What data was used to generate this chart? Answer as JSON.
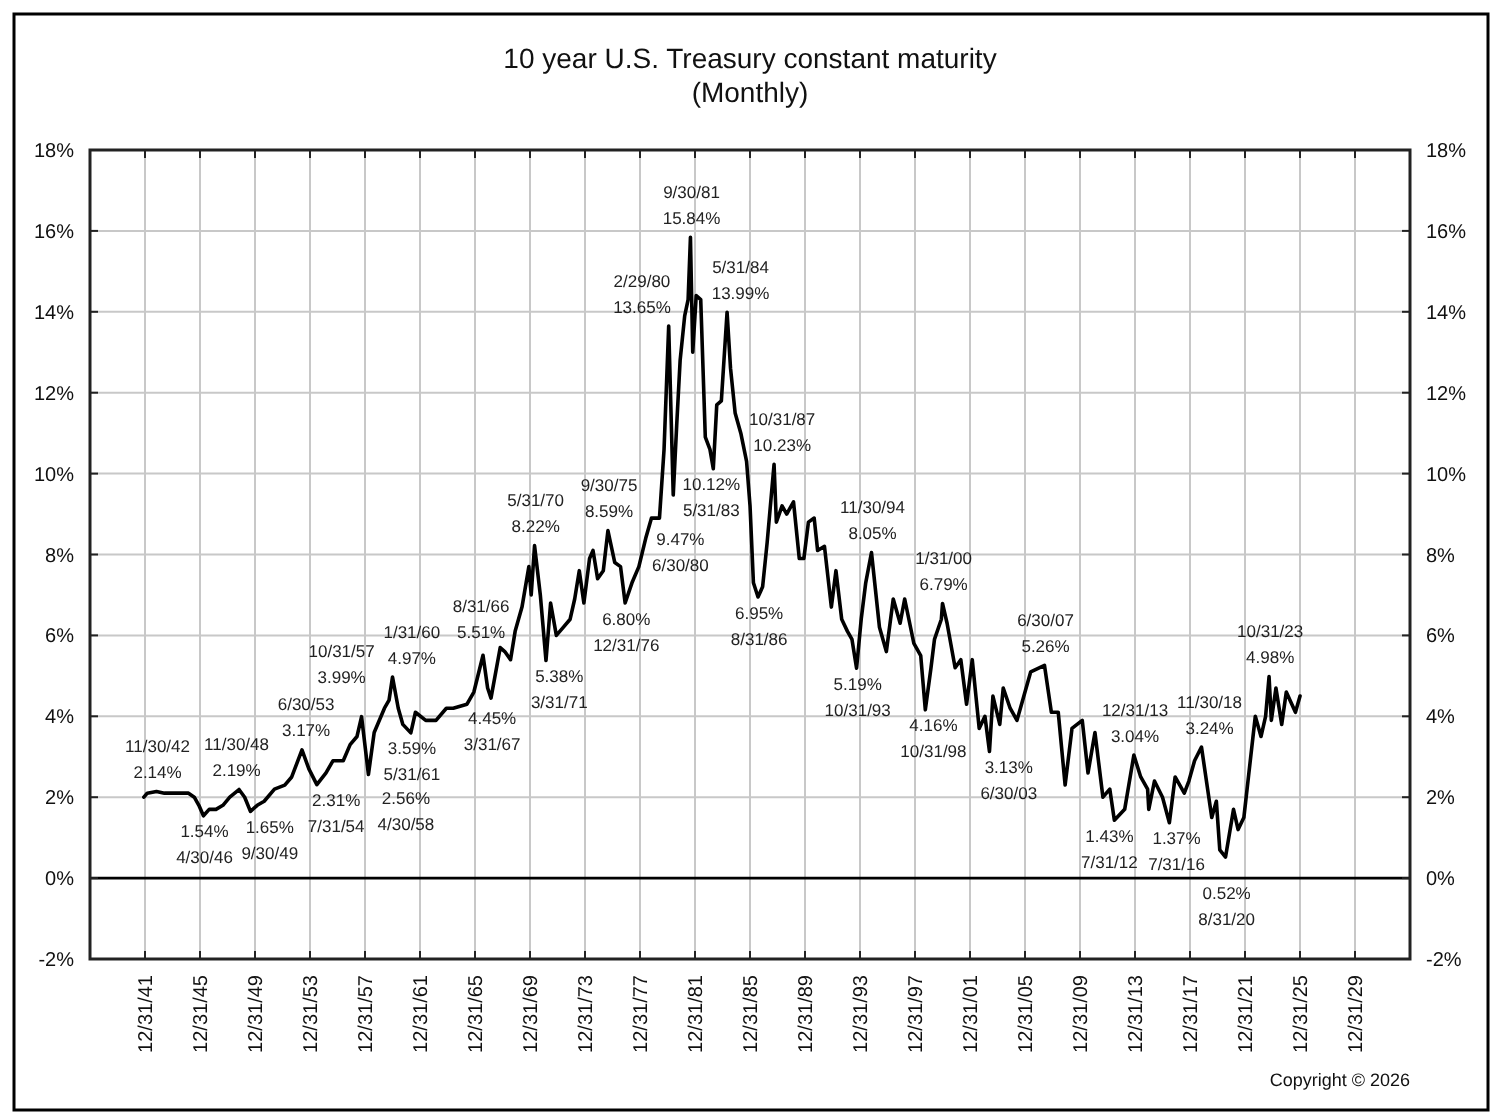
{
  "chart_data": {
    "type": "line",
    "title": "10 year U.S. Treasury constant maturity",
    "subtitle": "(Monthly)",
    "x": [
      "1941-12",
      "1942-03",
      "1942-11",
      "1943-06",
      "1944-06",
      "1945-03",
      "1945-08",
      "1945-12",
      "1946-04",
      "1946-09",
      "1947-03",
      "1947-09",
      "1948-03",
      "1948-11",
      "1949-04",
      "1949-09",
      "1950-03",
      "1950-09",
      "1951-06",
      "1952-03",
      "1952-09",
      "1953-06",
      "1953-12",
      "1954-07",
      "1955-03",
      "1955-09",
      "1956-06",
      "1956-12",
      "1957-06",
      "1957-10",
      "1958-04",
      "1958-09",
      "1959-06",
      "1959-10",
      "1960-01",
      "1960-06",
      "1960-10",
      "1961-05",
      "1961-09",
      "1962-06",
      "1963-03",
      "1963-12",
      "1964-06",
      "1965-06",
      "1965-12",
      "1966-08",
      "1966-12",
      "1967-03",
      "1967-11",
      "1968-03",
      "1968-08",
      "1968-12",
      "1969-06",
      "1969-12",
      "1970-02",
      "1970-05",
      "1970-10",
      "1971-03",
      "1971-07",
      "1971-12",
      "1972-06",
      "1972-12",
      "1973-04",
      "1973-08",
      "1973-12",
      "1974-05",
      "1974-08",
      "1974-12",
      "1975-05",
      "1975-09",
      "1976-03",
      "1976-08",
      "1976-12",
      "1977-06",
      "1977-12",
      "1978-06",
      "1978-11",
      "1979-06",
      "1979-10",
      "1980-02",
      "1980-06",
      "1980-09",
      "1980-12",
      "1981-04",
      "1981-07",
      "1981-09",
      "1981-11",
      "1982-02",
      "1982-06",
      "1982-10",
      "1983-02",
      "1983-05",
      "1983-08",
      "1983-12",
      "1984-05",
      "1984-08",
      "1984-12",
      "1985-05",
      "1985-10",
      "1986-01",
      "1986-04",
      "1986-08",
      "1986-12",
      "1987-04",
      "1987-10",
      "1987-12",
      "1988-05",
      "1988-09",
      "1989-03",
      "1989-08",
      "1989-12",
      "1990-04",
      "1990-09",
      "1990-12",
      "1991-06",
      "1991-12",
      "1992-04",
      "1992-09",
      "1993-02",
      "1993-06",
      "1993-10",
      "1994-02",
      "1994-06",
      "1994-11",
      "1995-06",
      "1995-12",
      "1996-06",
      "1996-12",
      "1997-04",
      "1997-12",
      "1998-06",
      "1998-10",
      "1999-03",
      "1999-06",
      "1999-12",
      "2000-01",
      "2000-05",
      "2000-12",
      "2001-05",
      "2001-10",
      "2002-03",
      "2002-09",
      "2003-02",
      "2003-06",
      "2003-09",
      "2004-03",
      "2004-06",
      "2004-12",
      "2005-06",
      "2005-12",
      "2006-06",
      "2007-06",
      "2007-12",
      "2008-06",
      "2008-12",
      "2009-06",
      "2010-03",
      "2010-08",
      "2011-02",
      "2011-09",
      "2012-03",
      "2012-07",
      "2013-04",
      "2013-12",
      "2014-06",
      "2014-12",
      "2015-01",
      "2015-06",
      "2016-01",
      "2016-07",
      "2016-12",
      "2017-08",
      "2017-12",
      "2018-05",
      "2018-11",
      "2019-08",
      "2019-12",
      "2020-03",
      "2020-08",
      "2021-03",
      "2021-07",
      "2021-12",
      "2022-06",
      "2022-10",
      "2023-03",
      "2023-07",
      "2023-10",
      "2023-12",
      "2024-04",
      "2024-09",
      "2025-01",
      "2025-09",
      "2026-01"
    ],
    "series": [
      {
        "color": "#000000",
        "values": [
          2.0,
          2.1,
          2.14,
          2.1,
          2.1,
          2.1,
          2.0,
          1.8,
          1.54,
          1.7,
          1.7,
          1.8,
          2.0,
          2.19,
          2.0,
          1.65,
          1.8,
          1.9,
          2.2,
          2.3,
          2.5,
          3.17,
          2.7,
          2.31,
          2.6,
          2.9,
          2.9,
          3.3,
          3.5,
          3.99,
          2.56,
          3.6,
          4.2,
          4.4,
          4.97,
          4.2,
          3.8,
          3.59,
          4.1,
          3.9,
          3.9,
          4.2,
          4.2,
          4.3,
          4.6,
          5.51,
          4.7,
          4.45,
          5.7,
          5.6,
          5.4,
          6.1,
          6.7,
          7.7,
          7.0,
          8.22,
          7.0,
          5.38,
          6.8,
          6.0,
          6.2,
          6.4,
          6.9,
          7.6,
          6.8,
          7.9,
          8.1,
          7.4,
          7.6,
          8.59,
          7.8,
          7.7,
          6.8,
          7.3,
          7.7,
          8.4,
          8.9,
          8.9,
          10.6,
          13.65,
          9.47,
          11.2,
          12.8,
          13.9,
          14.3,
          15.84,
          13.0,
          14.4,
          14.3,
          10.9,
          10.6,
          10.12,
          11.7,
          11.8,
          13.99,
          12.6,
          11.5,
          11.0,
          10.3,
          9.2,
          7.3,
          6.95,
          7.2,
          8.3,
          10.23,
          8.8,
          9.2,
          9.0,
          9.3,
          7.9,
          7.9,
          8.8,
          8.9,
          8.1,
          8.2,
          6.7,
          7.6,
          6.4,
          6.1,
          5.9,
          5.19,
          6.4,
          7.3,
          8.05,
          6.2,
          5.6,
          6.9,
          6.3,
          6.9,
          5.8,
          5.5,
          4.16,
          5.2,
          5.9,
          6.4,
          6.79,
          6.3,
          5.2,
          5.4,
          4.3,
          5.4,
          3.7,
          4.0,
          3.13,
          4.5,
          3.8,
          4.7,
          4.2,
          3.9,
          4.5,
          5.1,
          5.26,
          4.1,
          4.1,
          2.3,
          3.7,
          3.9,
          2.6,
          3.6,
          2.0,
          2.2,
          1.43,
          1.7,
          3.04,
          2.5,
          2.2,
          1.7,
          2.4,
          2.0,
          1.37,
          2.5,
          2.1,
          2.4,
          2.9,
          3.24,
          1.5,
          1.9,
          0.7,
          0.52,
          1.7,
          1.2,
          1.5,
          3.0,
          4.0,
          3.5,
          4.0,
          4.98,
          3.9,
          4.7,
          3.8,
          4.6,
          4.1,
          4.5
        ]
      }
    ],
    "xlim": [
      "1937-12-31",
      "2033-12-31"
    ],
    "xticks": [
      {
        "value": "1941-12-31",
        "label": "12/31/41"
      },
      {
        "value": "1945-12-31",
        "label": "12/31/45"
      },
      {
        "value": "1949-12-31",
        "label": "12/31/49"
      },
      {
        "value": "1953-12-31",
        "label": "12/31/53"
      },
      {
        "value": "1957-12-31",
        "label": "12/31/57"
      },
      {
        "value": "1961-12-31",
        "label": "12/31/61"
      },
      {
        "value": "1965-12-31",
        "label": "12/31/65"
      },
      {
        "value": "1969-12-31",
        "label": "12/31/69"
      },
      {
        "value": "1973-12-31",
        "label": "12/31/73"
      },
      {
        "value": "1977-12-31",
        "label": "12/31/77"
      },
      {
        "value": "1981-12-31",
        "label": "12/31/81"
      },
      {
        "value": "1985-12-31",
        "label": "12/31/85"
      },
      {
        "value": "1989-12-31",
        "label": "12/31/89"
      },
      {
        "value": "1993-12-31",
        "label": "12/31/93"
      },
      {
        "value": "1997-12-31",
        "label": "12/31/97"
      },
      {
        "value": "2001-12-31",
        "label": "12/31/01"
      },
      {
        "value": "2005-12-31",
        "label": "12/31/05"
      },
      {
        "value": "2009-12-31",
        "label": "12/31/09"
      },
      {
        "value": "2013-12-31",
        "label": "12/31/13"
      },
      {
        "value": "2017-12-31",
        "label": "12/31/17"
      },
      {
        "value": "2021-12-31",
        "label": "12/31/21"
      },
      {
        "value": "2025-12-31",
        "label": "12/31/25"
      },
      {
        "value": "2029-12-31",
        "label": "12/31/29"
      }
    ],
    "ylim": [
      -2,
      18
    ],
    "yticks": [
      {
        "value": -2,
        "label": "-2%"
      },
      {
        "value": 0,
        "label": "0%"
      },
      {
        "value": 2,
        "label": "2%"
      },
      {
        "value": 4,
        "label": "4%"
      },
      {
        "value": 6,
        "label": "6%"
      },
      {
        "value": 8,
        "label": "8%"
      },
      {
        "value": 10,
        "label": "10%"
      },
      {
        "value": 12,
        "label": "12%"
      },
      {
        "value": 14,
        "label": "14%"
      },
      {
        "value": 16,
        "label": "16%"
      },
      {
        "value": 18,
        "label": "18%"
      }
    ],
    "y2lim": [
      -2,
      18
    ],
    "y2ticks": [
      {
        "value": -2,
        "label": "-2%"
      },
      {
        "value": 0,
        "label": "0%"
      },
      {
        "value": 2,
        "label": "2%"
      },
      {
        "value": 4,
        "label": "4%"
      },
      {
        "value": 6,
        "label": "6%"
      },
      {
        "value": 8,
        "label": "8%"
      },
      {
        "value": 10,
        "label": "10%"
      },
      {
        "value": 12,
        "label": "12%"
      },
      {
        "value": 14,
        "label": "14%"
      },
      {
        "value": 16,
        "label": "16%"
      },
      {
        "value": 18,
        "label": "18%"
      }
    ],
    "grid": true,
    "ref_lines": [
      {
        "axis": "y",
        "value": 0,
        "color": "#000000"
      }
    ],
    "annotations": [
      {
        "text": "11/30/42\n2.14%",
        "x": "1942-11-30",
        "y": 2.14
      },
      {
        "text": "1.54%\n4/30/46",
        "x": "1946-04-30",
        "y": 1.54
      },
      {
        "text": "11/30/48\n2.19%",
        "x": "1948-11-30",
        "y": 2.19
      },
      {
        "text": "1.65%\n9/30/49",
        "x": "1949-09-30",
        "y": 1.65
      },
      {
        "text": "6/30/53\n3.17%",
        "x": "1953-06-30",
        "y": 3.17
      },
      {
        "text": "2.31%\n7/31/54",
        "x": "1954-07-31",
        "y": 2.31
      },
      {
        "text": "10/31/57\n3.99%",
        "x": "1957-10-31",
        "y": 3.99
      },
      {
        "text": "2.56%\n4/30/58",
        "x": "1958-04-30",
        "y": 2.56
      },
      {
        "text": "1/31/60\n4.97%",
        "x": "1960-01-31",
        "y": 4.97
      },
      {
        "text": "3.59%\n5/31/61",
        "x": "1961-05-31",
        "y": 3.59
      },
      {
        "text": "8/31/66\n5.51%",
        "x": "1966-08-31",
        "y": 5.51
      },
      {
        "text": "4.45%\n3/31/67",
        "x": "1967-03-31",
        "y": 4.45
      },
      {
        "text": "5/31/70\n8.22%",
        "x": "1970-05-31",
        "y": 8.22
      },
      {
        "text": "5.38%\n3/31/71",
        "x": "1971-03-31",
        "y": 5.38
      },
      {
        "text": "9/30/75\n8.59%",
        "x": "1975-09-30",
        "y": 8.59
      },
      {
        "text": "6.80%\n12/31/76",
        "x": "1976-12-31",
        "y": 6.8
      },
      {
        "text": "2/29/80\n13.65%",
        "x": "1980-02-29",
        "y": 13.65
      },
      {
        "text": "9.47%\n6/30/80",
        "x": "1980-06-30",
        "y": 9.47
      },
      {
        "text": "9/30/81\n15.84%",
        "x": "1981-09-30",
        "y": 15.84
      },
      {
        "text": "10.12%\n5/31/83",
        "x": "1983-05-31",
        "y": 10.12
      },
      {
        "text": "5/31/84\n13.99%",
        "x": "1984-05-31",
        "y": 13.99
      },
      {
        "text": "6.95%\n8/31/86",
        "x": "1986-08-31",
        "y": 6.95
      },
      {
        "text": "10/31/87\n10.23%",
        "x": "1987-10-31",
        "y": 10.23
      },
      {
        "text": "5.19%\n10/31/93",
        "x": "1993-10-31",
        "y": 5.19
      },
      {
        "text": "11/30/94\n8.05%",
        "x": "1994-11-30",
        "y": 8.05
      },
      {
        "text": "4.16%\n10/31/98",
        "x": "1998-10-31",
        "y": 4.16
      },
      {
        "text": "1/31/00\n6.79%",
        "x": "2000-01-31",
        "y": 6.79
      },
      {
        "text": "3.13%\n6/30/03",
        "x": "2003-06-30",
        "y": 3.13
      },
      {
        "text": "6/30/07\n5.26%",
        "x": "2007-06-30",
        "y": 5.26
      },
      {
        "text": "1.43%\n7/31/12",
        "x": "2012-07-31",
        "y": 1.43
      },
      {
        "text": "12/31/13\n3.04%",
        "x": "2013-12-31",
        "y": 3.04
      },
      {
        "text": "1.37%\n7/31/16",
        "x": "2016-07-31",
        "y": 1.37
      },
      {
        "text": "11/30/18\n3.24%",
        "x": "2018-11-30",
        "y": 3.24
      },
      {
        "text": "0.52%\n8/31/20",
        "x": "2020-08-31",
        "y": 0.52
      },
      {
        "text": "10/31/23\n4.98%",
        "x": "2023-10-31",
        "y": 4.98
      },
      "Copyright © 2026"
    ]
  }
}
